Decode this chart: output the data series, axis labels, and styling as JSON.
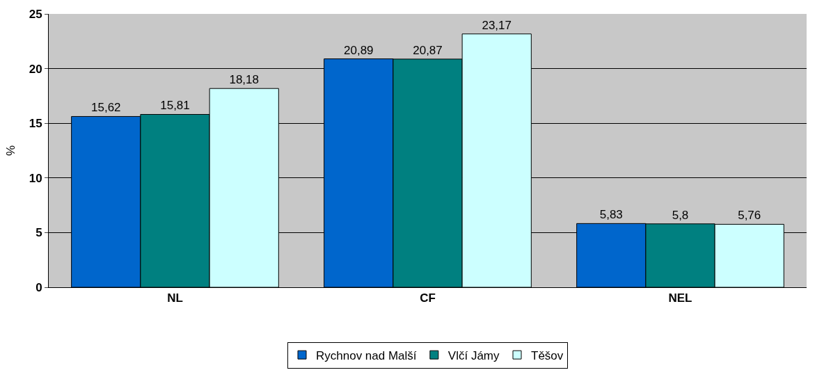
{
  "chart_data": {
    "type": "bar",
    "ylabel": "%",
    "categories": [
      "NL",
      "CF",
      "NEL"
    ],
    "series": [
      {
        "name": "Rychnov nad Malší",
        "color": "#0066cc",
        "values": [
          15.62,
          20.89,
          5.83
        ],
        "value_labels": [
          "15,62",
          "20,89",
          "5,83"
        ]
      },
      {
        "name": "Vlčí Jámy",
        "color": "#008080",
        "values": [
          15.81,
          20.87,
          5.8
        ],
        "value_labels": [
          "15,81",
          "20,87",
          "5,8"
        ]
      },
      {
        "name": "Těšov",
        "color": "#ccffff",
        "values": [
          18.18,
          23.17,
          5.76
        ],
        "value_labels": [
          "18,18",
          "23,17",
          "5,76"
        ]
      }
    ],
    "ylim": [
      0,
      25
    ],
    "yticks": [
      0,
      5,
      10,
      15,
      20,
      25
    ],
    "grid": "y",
    "legend": "bottom"
  }
}
